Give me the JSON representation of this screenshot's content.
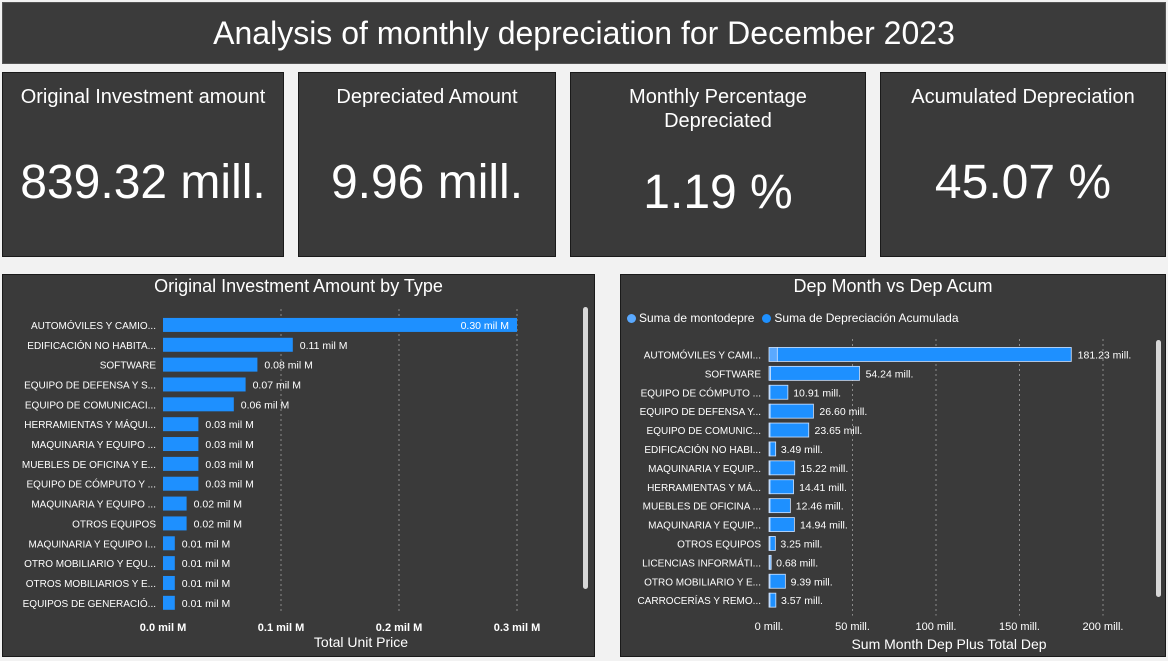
{
  "header": {
    "title": "Analysis of monthly depreciation for December 2023"
  },
  "kpis": [
    {
      "label": "Original Investment amount",
      "value": "839.32 mill."
    },
    {
      "label": "Depreciated Amount",
      "value": "9.96 mill."
    },
    {
      "label": "Monthly Percentage Depreciated",
      "value": "1.19 %"
    },
    {
      "label": "Acumulated Depreciation",
      "value": "45.07 %"
    }
  ],
  "colors": {
    "bar": "#1e90ff",
    "bar_light": "#5aa9ff",
    "panel": "#3a3a3a",
    "grid": "#8a8a8a"
  },
  "chart_data": [
    {
      "type": "bar",
      "orientation": "horizontal",
      "title": "Original Investment Amount by Type",
      "xlabel": "Total Unit Price",
      "categories": [
        "AUTOMÓVILES Y CAMIO...",
        "EDIFICACIÓN NO HABITA...",
        "SOFTWARE",
        "EQUIPO DE DEFENSA Y S...",
        "EQUIPO DE COMUNICACI...",
        "HERRAMIENTAS Y MÁQUI...",
        "MAQUINARIA Y EQUIPO ...",
        "MUEBLES DE OFICINA Y E...",
        "EQUIPO DE CÓMPUTO Y ...",
        "MAQUINARIA Y EQUIPO ...",
        "OTROS EQUIPOS",
        "MAQUINARIA Y EQUIPO I...",
        "OTRO MOBILIARIO Y EQU...",
        "OTROS MOBILIARIOS Y E...",
        "EQUIPOS DE GENERACIÓ..."
      ],
      "values": [
        0.3,
        0.11,
        0.08,
        0.07,
        0.06,
        0.03,
        0.03,
        0.03,
        0.03,
        0.02,
        0.02,
        0.01,
        0.01,
        0.01,
        0.01
      ],
      "data_labels": [
        "0.30 mil M",
        "0.11 mil M",
        "0.08 mil M",
        "0.07 mil M",
        "0.06 mil M",
        "0.03 mil M",
        "0.03 mil M",
        "0.03 mil M",
        "0.03 mil M",
        "0.02 mil M",
        "0.02 mil M",
        "0.01 mil M",
        "0.01 mil M",
        "0.01 mil M",
        "0.01 mil M"
      ],
      "xlim": [
        0,
        0.3
      ],
      "xticks": [
        0,
        0.1,
        0.2,
        0.3
      ],
      "xtick_labels": [
        "0.0 mil M",
        "0.1 mil M",
        "0.2 mil M",
        "0.3 mil M"
      ],
      "grid": true
    },
    {
      "type": "bar",
      "orientation": "horizontal",
      "title": "Dep Month vs Dep Acum",
      "xlabel": "Sum Month Dep Plus Total Dep",
      "legend": [
        "Suma de montodepre",
        "Suma de Depreciación Acumulada"
      ],
      "legend_position": "top-left",
      "categories": [
        "AUTOMÓVILES Y CAMI...",
        "SOFTWARE",
        "EQUIPO DE CÓMPUTO ...",
        "EQUIPO DE DEFENSA Y...",
        "EQUIPO DE COMUNIC...",
        "EDIFICACIÓN NO HABI...",
        "MAQUINARIA Y EQUIP...",
        "HERRAMIENTAS Y MÁ...",
        "MUEBLES DE OFICINA ...",
        "MAQUINARIA Y EQUIP...",
        "OTROS EQUIPOS",
        "LICENCIAS INFORMÁTI...",
        "OTRO MOBILIARIO Y E...",
        "CARROCERÍAS Y REMO..."
      ],
      "series": [
        {
          "name": "Suma de montodepre",
          "values": [
            5,
            0.9,
            0.2,
            0.7,
            0.5,
            0.07,
            0.4,
            0.3,
            0.3,
            0.3,
            0.08,
            0.02,
            0.2,
            0.1
          ]
        },
        {
          "name": "Suma de Depreciación Acumulada",
          "values": [
            176,
            53.3,
            10.7,
            25.9,
            23.2,
            3.4,
            14.8,
            14.1,
            12.2,
            14.6,
            3.2,
            0.7,
            9.2,
            3.5
          ]
        }
      ],
      "totals": [
        181.23,
        54.24,
        10.91,
        26.6,
        23.65,
        3.49,
        15.22,
        14.41,
        12.46,
        14.94,
        3.25,
        0.68,
        9.39,
        3.57
      ],
      "data_labels": [
        "181.23 mill.",
        "54.24 mill.",
        "10.91 mill.",
        "26.60 mill.",
        "23.65 mill.",
        "3.49 mill.",
        "15.22 mill.",
        "14.41 mill.",
        "12.46 mill.",
        "14.94 mill.",
        "3.25 mill.",
        "0.68 mill.",
        "9.39 mill.",
        "3.57 mill."
      ],
      "xlim": [
        0,
        200
      ],
      "xticks": [
        0,
        50,
        100,
        150,
        200
      ],
      "xtick_labels": [
        "0 mill.",
        "50 mill.",
        "100 mill.",
        "150 mill.",
        "200 mill."
      ],
      "grid": true
    }
  ]
}
